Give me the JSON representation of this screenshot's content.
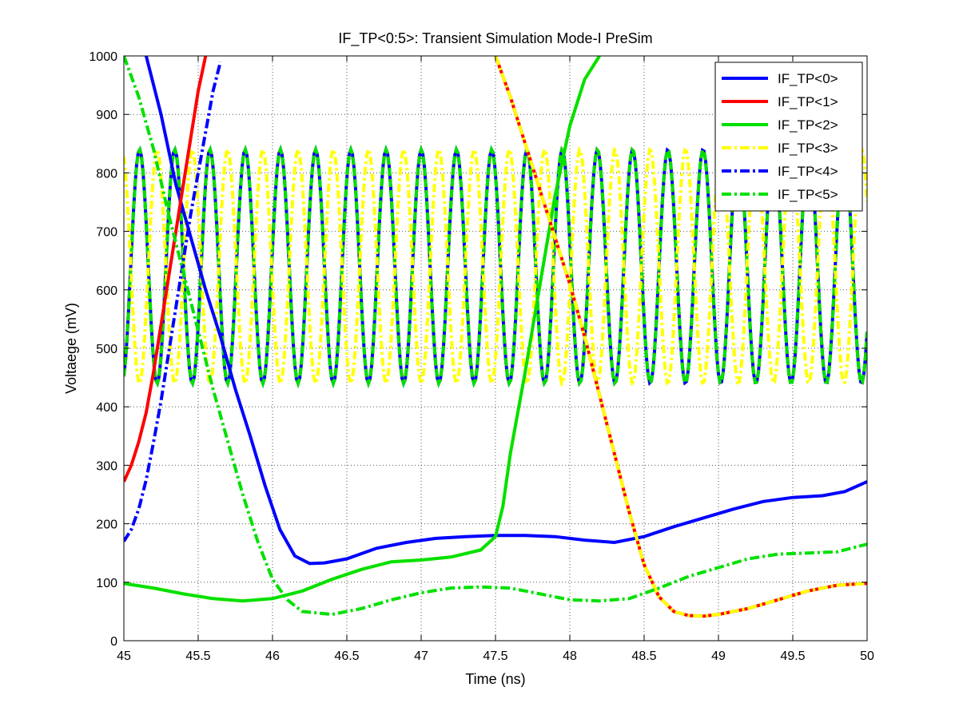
{
  "chart_data": {
    "type": "line",
    "title": "IF_TP<0:5>: Transient Simulation Mode-I PreSim",
    "xlabel": "Time (ns)",
    "ylabel": "Voltaege (mV)",
    "xlim": [
      45,
      50
    ],
    "ylim": [
      0,
      1000
    ],
    "xticks": [
      "45",
      "45.5",
      "46",
      "46.5",
      "47",
      "47.5",
      "48",
      "48.5",
      "49",
      "49.5",
      "50"
    ],
    "yticks": [
      "0",
      "100",
      "200",
      "300",
      "400",
      "500",
      "600",
      "700",
      "800",
      "900",
      "1000"
    ],
    "grid": true,
    "legend_position": "top-right",
    "colors": {
      "blue": "#0000ff",
      "red": "#ff0000",
      "green": "#00e000",
      "yellow": "#ffff00"
    },
    "series": [
      {
        "name": "IF_TP<0>",
        "color": "#0000ff",
        "style": "solid",
        "x": [
          45.15,
          45.25,
          45.35,
          45.45,
          45.55,
          45.65,
          45.75,
          45.85,
          45.95,
          46.05,
          46.15,
          46.25,
          46.35,
          46.5,
          46.7,
          46.9,
          47.1,
          47.3,
          47.5,
          47.7,
          47.9,
          48.1,
          48.3,
          48.5,
          48.7,
          48.9,
          49.1,
          49.3,
          49.5,
          49.7,
          49.85,
          50.0
        ],
        "y": [
          1000,
          900,
          780,
          690,
          600,
          520,
          430,
          350,
          265,
          190,
          145,
          132,
          133,
          140,
          158,
          168,
          175,
          178,
          180,
          180,
          178,
          172,
          168,
          178,
          195,
          210,
          225,
          238,
          245,
          248,
          255,
          272
        ]
      },
      {
        "name": "IF_TP<1>",
        "color": "#ff0000",
        "style": "solid",
        "x": [
          45.0,
          45.05,
          45.1,
          45.15,
          45.2,
          45.25,
          45.3,
          45.35,
          45.4,
          45.45,
          45.5,
          45.55
        ],
        "y": [
          272,
          300,
          340,
          390,
          460,
          540,
          620,
          700,
          780,
          860,
          940,
          1000
        ]
      },
      {
        "name": "IF_TP<2>",
        "color": "#00e000",
        "style": "solid",
        "x": [
          45.0,
          45.2,
          45.4,
          45.6,
          45.8,
          46.0,
          46.2,
          46.4,
          46.6,
          46.8,
          47.0,
          47.2,
          47.4,
          47.5,
          47.55,
          47.6,
          47.7,
          47.8,
          47.9,
          48.0,
          48.1,
          48.2
        ],
        "y": [
          98,
          90,
          80,
          72,
          68,
          72,
          85,
          105,
          122,
          135,
          138,
          143,
          155,
          178,
          230,
          320,
          460,
          610,
          760,
          880,
          960,
          1000
        ]
      },
      {
        "name": "IF_TP<3>",
        "color": "#ffff00",
        "style": "dashdot",
        "x": [
          47.5,
          47.6,
          47.7,
          47.8,
          47.9,
          48.0,
          48.1,
          48.2,
          48.3,
          48.4,
          48.5,
          48.6,
          48.7,
          48.8,
          48.9,
          49.0,
          49.2,
          49.4,
          49.6,
          49.8,
          50.0
        ],
        "y": [
          1000,
          930,
          850,
          770,
          690,
          610,
          520,
          420,
          320,
          220,
          130,
          75,
          50,
          43,
          42,
          45,
          55,
          70,
          85,
          95,
          98
        ]
      },
      {
        "name": "IF_TP<4>",
        "color": "#0000ff",
        "style": "dashdot",
        "x": [
          45.0,
          45.05,
          45.1,
          45.15,
          45.2,
          45.25,
          45.3,
          45.35,
          45.4,
          45.45,
          45.5,
          45.55,
          45.6,
          45.65
        ],
        "y": [
          170,
          190,
          225,
          275,
          340,
          410,
          490,
          570,
          650,
          730,
          800,
          870,
          940,
          990
        ]
      },
      {
        "name": "IF_TP<5>",
        "color": "#00e000",
        "style": "dashdot",
        "x": [
          45.0,
          45.1,
          45.2,
          45.3,
          45.4,
          45.5,
          45.6,
          45.7,
          45.8,
          45.9,
          46.0,
          46.1,
          46.2,
          46.4,
          46.6,
          46.8,
          47.0,
          47.2,
          47.4,
          47.6,
          47.8,
          48.0,
          48.2,
          48.4,
          48.6,
          48.8,
          49.0,
          49.2,
          49.4,
          49.6,
          49.8,
          50.0
        ],
        "y": [
          1000,
          930,
          840,
          730,
          630,
          530,
          430,
          340,
          250,
          170,
          105,
          70,
          50,
          45,
          55,
          70,
          82,
          90,
          92,
          90,
          80,
          70,
          68,
          72,
          90,
          110,
          125,
          140,
          148,
          150,
          152,
          165
        ]
      }
    ]
  }
}
